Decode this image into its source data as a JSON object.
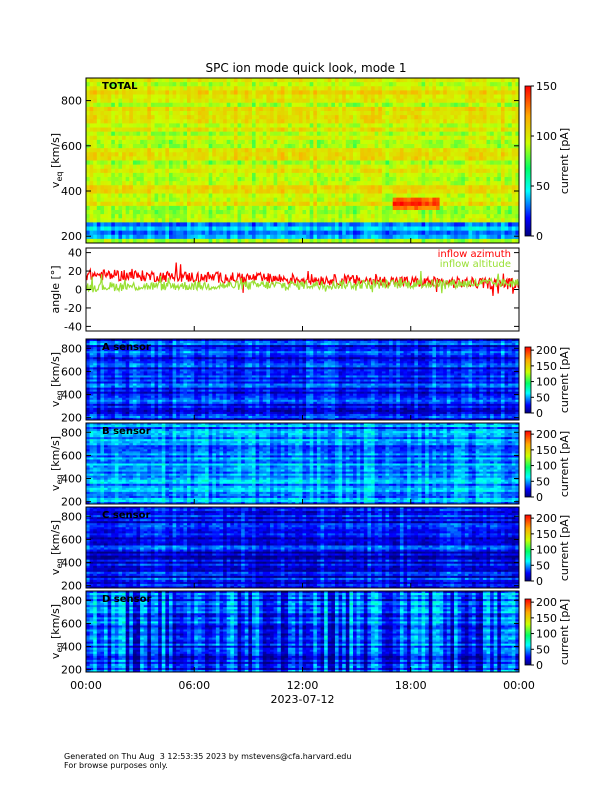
{
  "chart_data": {
    "type": "heatmap",
    "title": "SPC ion mode quick look, mode 1",
    "x_axis": {
      "tick_labels": [
        "00:00",
        "06:00",
        "12:00",
        "18:00",
        "00:00"
      ],
      "label": "2023-07-12",
      "range_hours": [
        0,
        24
      ]
    },
    "panels": [
      {
        "name": "total",
        "type": "heatmap",
        "label": "TOTAL",
        "ylabel": "v",
        "ylabel_sub": "eq",
        "yunits": "[km/s]",
        "yrange": [
          170,
          900
        ],
        "yticks": [
          200,
          400,
          600,
          800
        ],
        "colorbar": {
          "range": [
            0,
            150
          ],
          "ticks": [
            0,
            50,
            100,
            150
          ],
          "label": "current [pA]"
        },
        "background_level": 95,
        "features": [
          {
            "description_level": "low speed stripes",
            "v_range": [
              180,
              260
            ],
            "level": 30
          },
          {
            "v_range": [
              310,
              370
            ],
            "t_range_hours": [
              17,
              19.5
            ],
            "level": 135
          }
        ]
      },
      {
        "name": "angle",
        "type": "line",
        "ylabel": "angle [°]",
        "yrange": [
          -45,
          45
        ],
        "yticks": [
          -40,
          -20,
          0,
          20,
          40
        ],
        "series": [
          {
            "name": "inflow azimuth",
            "color": "#ff0000",
            "mean_start": 16,
            "mean_end": 6,
            "spread": 6
          },
          {
            "name": "inflow altitude",
            "color": "#99e033",
            "mean_start": 3,
            "mean_end": 7,
            "spread": 5
          }
        ]
      },
      {
        "name": "A",
        "type": "heatmap",
        "label": "A sensor",
        "ylabel": "v",
        "ylabel_sub": "eq",
        "yunits": "[km/s]",
        "yrange": [
          180,
          880
        ],
        "yticks": [
          200,
          400,
          600,
          800
        ],
        "colorbar": {
          "range": [
            0,
            210
          ],
          "ticks": [
            0,
            50,
            100,
            150,
            200
          ],
          "label": "current [pA]"
        },
        "background_level": 30
      },
      {
        "name": "B",
        "type": "heatmap",
        "label": "B sensor",
        "ylabel": "v",
        "ylabel_sub": "eq",
        "yunits": "[km/s]",
        "yrange": [
          180,
          880
        ],
        "yticks": [
          200,
          400,
          600,
          800
        ],
        "colorbar": {
          "range": [
            0,
            210
          ],
          "ticks": [
            0,
            50,
            100,
            150,
            200
          ],
          "label": "current [pA]"
        },
        "background_level": 45
      },
      {
        "name": "C",
        "type": "heatmap",
        "label": "C sensor",
        "ylabel": "v",
        "ylabel_sub": "eq",
        "yunits": "[km/s]",
        "yrange": [
          180,
          880
        ],
        "yticks": [
          200,
          400,
          600,
          800
        ],
        "colorbar": {
          "range": [
            0,
            210
          ],
          "ticks": [
            0,
            50,
            100,
            150,
            200
          ],
          "label": "current [pA]"
        },
        "background_level": 25
      },
      {
        "name": "D",
        "type": "heatmap",
        "label": "D sensor",
        "ylabel": "v",
        "ylabel_sub": "eq",
        "yunits": "[km/s]",
        "yrange": [
          180,
          880
        ],
        "yticks": [
          200,
          400,
          600,
          800
        ],
        "colorbar": {
          "range": [
            0,
            210
          ],
          "ticks": [
            0,
            50,
            100,
            150,
            200
          ],
          "label": "current [pA]"
        },
        "background_level": 35
      }
    ]
  },
  "footer": {
    "line1": "Generated on Thu Aug  3 12:53:35 2023 by mstevens@cfa.harvard.edu",
    "line2": "For browse purposes only."
  }
}
